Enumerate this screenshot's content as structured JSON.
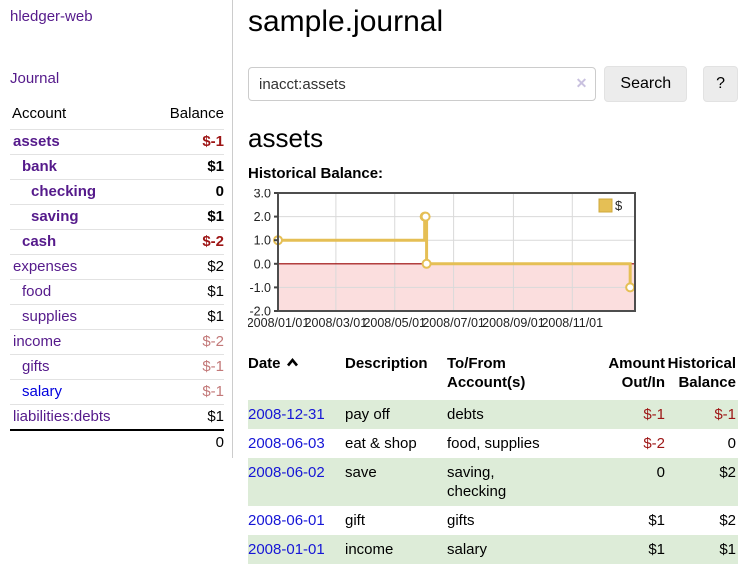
{
  "app": {
    "brand": "hledger-web",
    "nav_journal": "Journal"
  },
  "colors": {
    "link_purple": "#551a8b",
    "link_blue": "#0000dd",
    "negative_strong": "#9d1515",
    "negative_muted": "#c27878",
    "row_stripe_green": "#ddecd8",
    "chart_line_gold": "#e5bf55",
    "chart_negative_bg": "#fbdede",
    "chart_zero_line": "#990000"
  },
  "sidebar": {
    "headers": {
      "account": "Account",
      "balance": "Balance"
    },
    "rows": [
      {
        "label": "assets",
        "indent": 1,
        "bold": true,
        "balance": "$-1",
        "neg": "strong"
      },
      {
        "label": "bank",
        "indent": 2,
        "bold": true,
        "balance": "$1",
        "neg": null
      },
      {
        "label": "checking",
        "indent": 3,
        "bold": true,
        "balance": "0",
        "neg": null
      },
      {
        "label": "saving",
        "indent": 3,
        "bold": true,
        "balance": "$1",
        "neg": null
      },
      {
        "label": "cash",
        "indent": 2,
        "bold": true,
        "balance": "$-2",
        "neg": "strong"
      },
      {
        "label": "expenses",
        "indent": 1,
        "bold": false,
        "balance": "$2",
        "neg": null
      },
      {
        "label": "food",
        "indent": 2,
        "bold": false,
        "balance": "$1",
        "neg": null
      },
      {
        "label": "supplies",
        "indent": 2,
        "bold": false,
        "balance": "$1",
        "neg": null
      },
      {
        "label": "income",
        "indent": 1,
        "bold": false,
        "balance": "$-2",
        "neg": "muted"
      },
      {
        "label": "gifts",
        "indent": 2,
        "bold": false,
        "balance": "$-1",
        "neg": "muted"
      },
      {
        "label": "salary",
        "indent": 2,
        "bold": false,
        "balance": "$-1",
        "neg": "muted",
        "link": "unvisited"
      },
      {
        "label": "liabilities:debts",
        "indent": 1,
        "bold": false,
        "balance": "$1",
        "neg": null
      }
    ],
    "total": "0"
  },
  "header": {
    "title": "sample.journal"
  },
  "search": {
    "value": "inacct:assets",
    "clear_glyph": "✕",
    "button_label": "Search",
    "help_label": "?"
  },
  "account_page": {
    "heading": "assets",
    "chart_label": "Historical Balance:"
  },
  "chart_data": {
    "type": "line",
    "step": true,
    "title": "Historical Balance:",
    "series": [
      {
        "name": "$",
        "color": "#e5bf55",
        "points": [
          [
            "2008-01-01",
            1
          ],
          [
            "2008-06-01",
            2
          ],
          [
            "2008-06-02",
            2
          ],
          [
            "2008-06-03",
            0
          ],
          [
            "2008-12-31",
            -1
          ]
        ]
      }
    ],
    "x_epoch": "2008-01-01",
    "x_domain_days": 370,
    "x_ticks": [
      "2008/01/01",
      "2008/03/01",
      "2008/05/01",
      "2008/07/01",
      "2008/09/01",
      "2008/11/01"
    ],
    "y_ticks": [
      3.0,
      2.0,
      1.0,
      0.0,
      -1.0,
      -2.0
    ],
    "y_tick_labels": [
      "3.0",
      "2.0",
      "1.0",
      "0.0",
      "-1.0",
      "-2.0"
    ],
    "ylim": [
      -2,
      3
    ],
    "grid": true,
    "negative_region_color": "#fbdede",
    "zero_line_color": "#990000",
    "legend": {
      "label": "$",
      "position": "top-right"
    }
  },
  "register": {
    "columns": [
      {
        "label": "Date",
        "sorted": "asc",
        "align": "left"
      },
      {
        "label": "Description",
        "align": "left"
      },
      {
        "label": "To/From\nAccount(s)",
        "align": "left"
      },
      {
        "label": "Amount\nOut/In",
        "align": "right"
      },
      {
        "label": "Historical\nBalance",
        "align": "right"
      }
    ],
    "rows": [
      {
        "date": "2008-12-31",
        "description": "pay off",
        "accounts": "debts",
        "amount": "$-1",
        "amount_neg": true,
        "balance": "$-1",
        "balance_neg": true,
        "shaded": true
      },
      {
        "date": "2008-06-03",
        "description": "eat & shop",
        "accounts": "food, supplies",
        "amount": "$-2",
        "amount_neg": true,
        "balance": "0",
        "balance_neg": false,
        "shaded": false
      },
      {
        "date": "2008-06-02",
        "description": "save",
        "accounts": "saving,\nchecking",
        "amount": "0",
        "amount_neg": false,
        "balance": "$2",
        "balance_neg": false,
        "shaded": true
      },
      {
        "date": "2008-06-01",
        "description": "gift",
        "accounts": "gifts",
        "amount": "$1",
        "amount_neg": false,
        "balance": "$2",
        "balance_neg": false,
        "shaded": false
      },
      {
        "date": "2008-01-01",
        "description": "income",
        "accounts": "salary",
        "amount": "$1",
        "amount_neg": false,
        "balance": "$1",
        "balance_neg": false,
        "shaded": true
      }
    ]
  }
}
